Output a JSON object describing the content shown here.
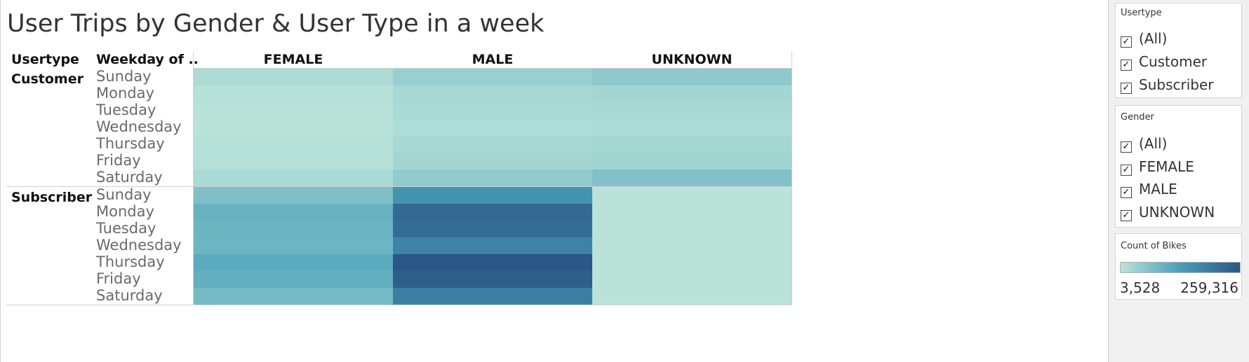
{
  "title": "User Trips by Gender & User Type in a week",
  "headers": {
    "usertype": "Usertype",
    "weekday": "Weekday of ..",
    "columns": [
      "FEMALE",
      "MALE",
      "UNKNOWN"
    ]
  },
  "sidebar": {
    "usertype_filter": {
      "title": "Usertype",
      "options": [
        "(All)",
        "Customer",
        "Subscriber"
      ]
    },
    "gender_filter": {
      "title": "Gender",
      "options": [
        "(All)",
        "FEMALE",
        "MALE",
        "UNKNOWN"
      ]
    },
    "color_legend": {
      "title": "Count of Bikes",
      "min_label": "3,528",
      "max_label": "259,316",
      "color_low": "#b9e3d9",
      "color_high": "#2a5785"
    }
  },
  "check_glyph": "✓",
  "chart_data": {
    "type": "heatmap",
    "title": "User Trips by Gender & User Type in a week",
    "measure": "Count of Bikes",
    "rows_group": "Usertype",
    "rows_sub": "Weekday of ..",
    "columns": [
      "FEMALE",
      "MALE",
      "UNKNOWN"
    ],
    "color_range": [
      3528,
      259316
    ],
    "groups": [
      {
        "name": "Customer",
        "weekdays": [
          "Sunday",
          "Monday",
          "Tuesday",
          "Wednesday",
          "Thursday",
          "Friday",
          "Saturday"
        ],
        "values": [
          [
            18000,
            40000,
            52000
          ],
          [
            8000,
            24000,
            28000
          ],
          [
            5000,
            20000,
            22000
          ],
          [
            3528,
            14000,
            18000
          ],
          [
            7000,
            22000,
            26000
          ],
          [
            9000,
            28000,
            32000
          ],
          [
            20000,
            46000,
            66000
          ]
        ]
      },
      {
        "name": "Subscriber",
        "weekdays": [
          "Sunday",
          "Monday",
          "Tuesday",
          "Wednesday",
          "Thursday",
          "Friday",
          "Saturday"
        ],
        "values": [
          [
            70000,
            150000,
            4000
          ],
          [
            95000,
            225000,
            4000
          ],
          [
            90000,
            220000,
            4000
          ],
          [
            88000,
            180000,
            4000
          ],
          [
            110000,
            259316,
            4000
          ],
          [
            100000,
            245000,
            4000
          ],
          [
            80000,
            185000,
            4000
          ]
        ]
      }
    ]
  }
}
